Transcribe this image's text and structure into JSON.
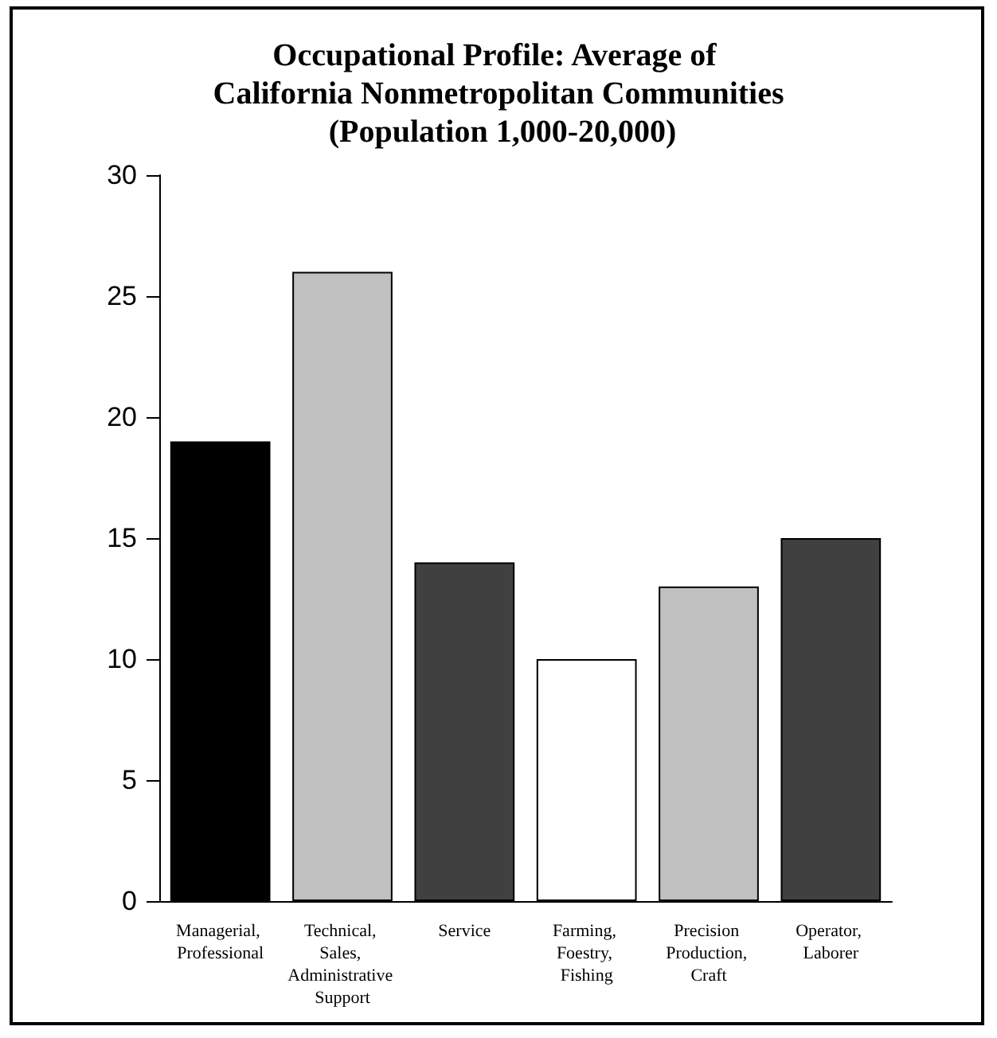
{
  "chart_data": {
    "type": "bar",
    "title": "Occupational Profile: Average of California Nonmetropolitan Communities (Population 1,000-20,000)",
    "categories": [
      "Managerial, Professional",
      "Technical, Sales, Administrative Support",
      "Service",
      "Farming, Foestry, Fishing",
      "Precision Production, Craft",
      "Operator, Laborer"
    ],
    "values": [
      19,
      26,
      14,
      10,
      13,
      15
    ],
    "colors": [
      "#000000",
      "#c0c0c0",
      "#404040",
      "#ffffff",
      "#c0c0c0",
      "#404040"
    ],
    "ylim": [
      0,
      30
    ],
    "yticks": [
      0,
      5,
      10,
      15,
      20,
      25,
      30
    ]
  }
}
